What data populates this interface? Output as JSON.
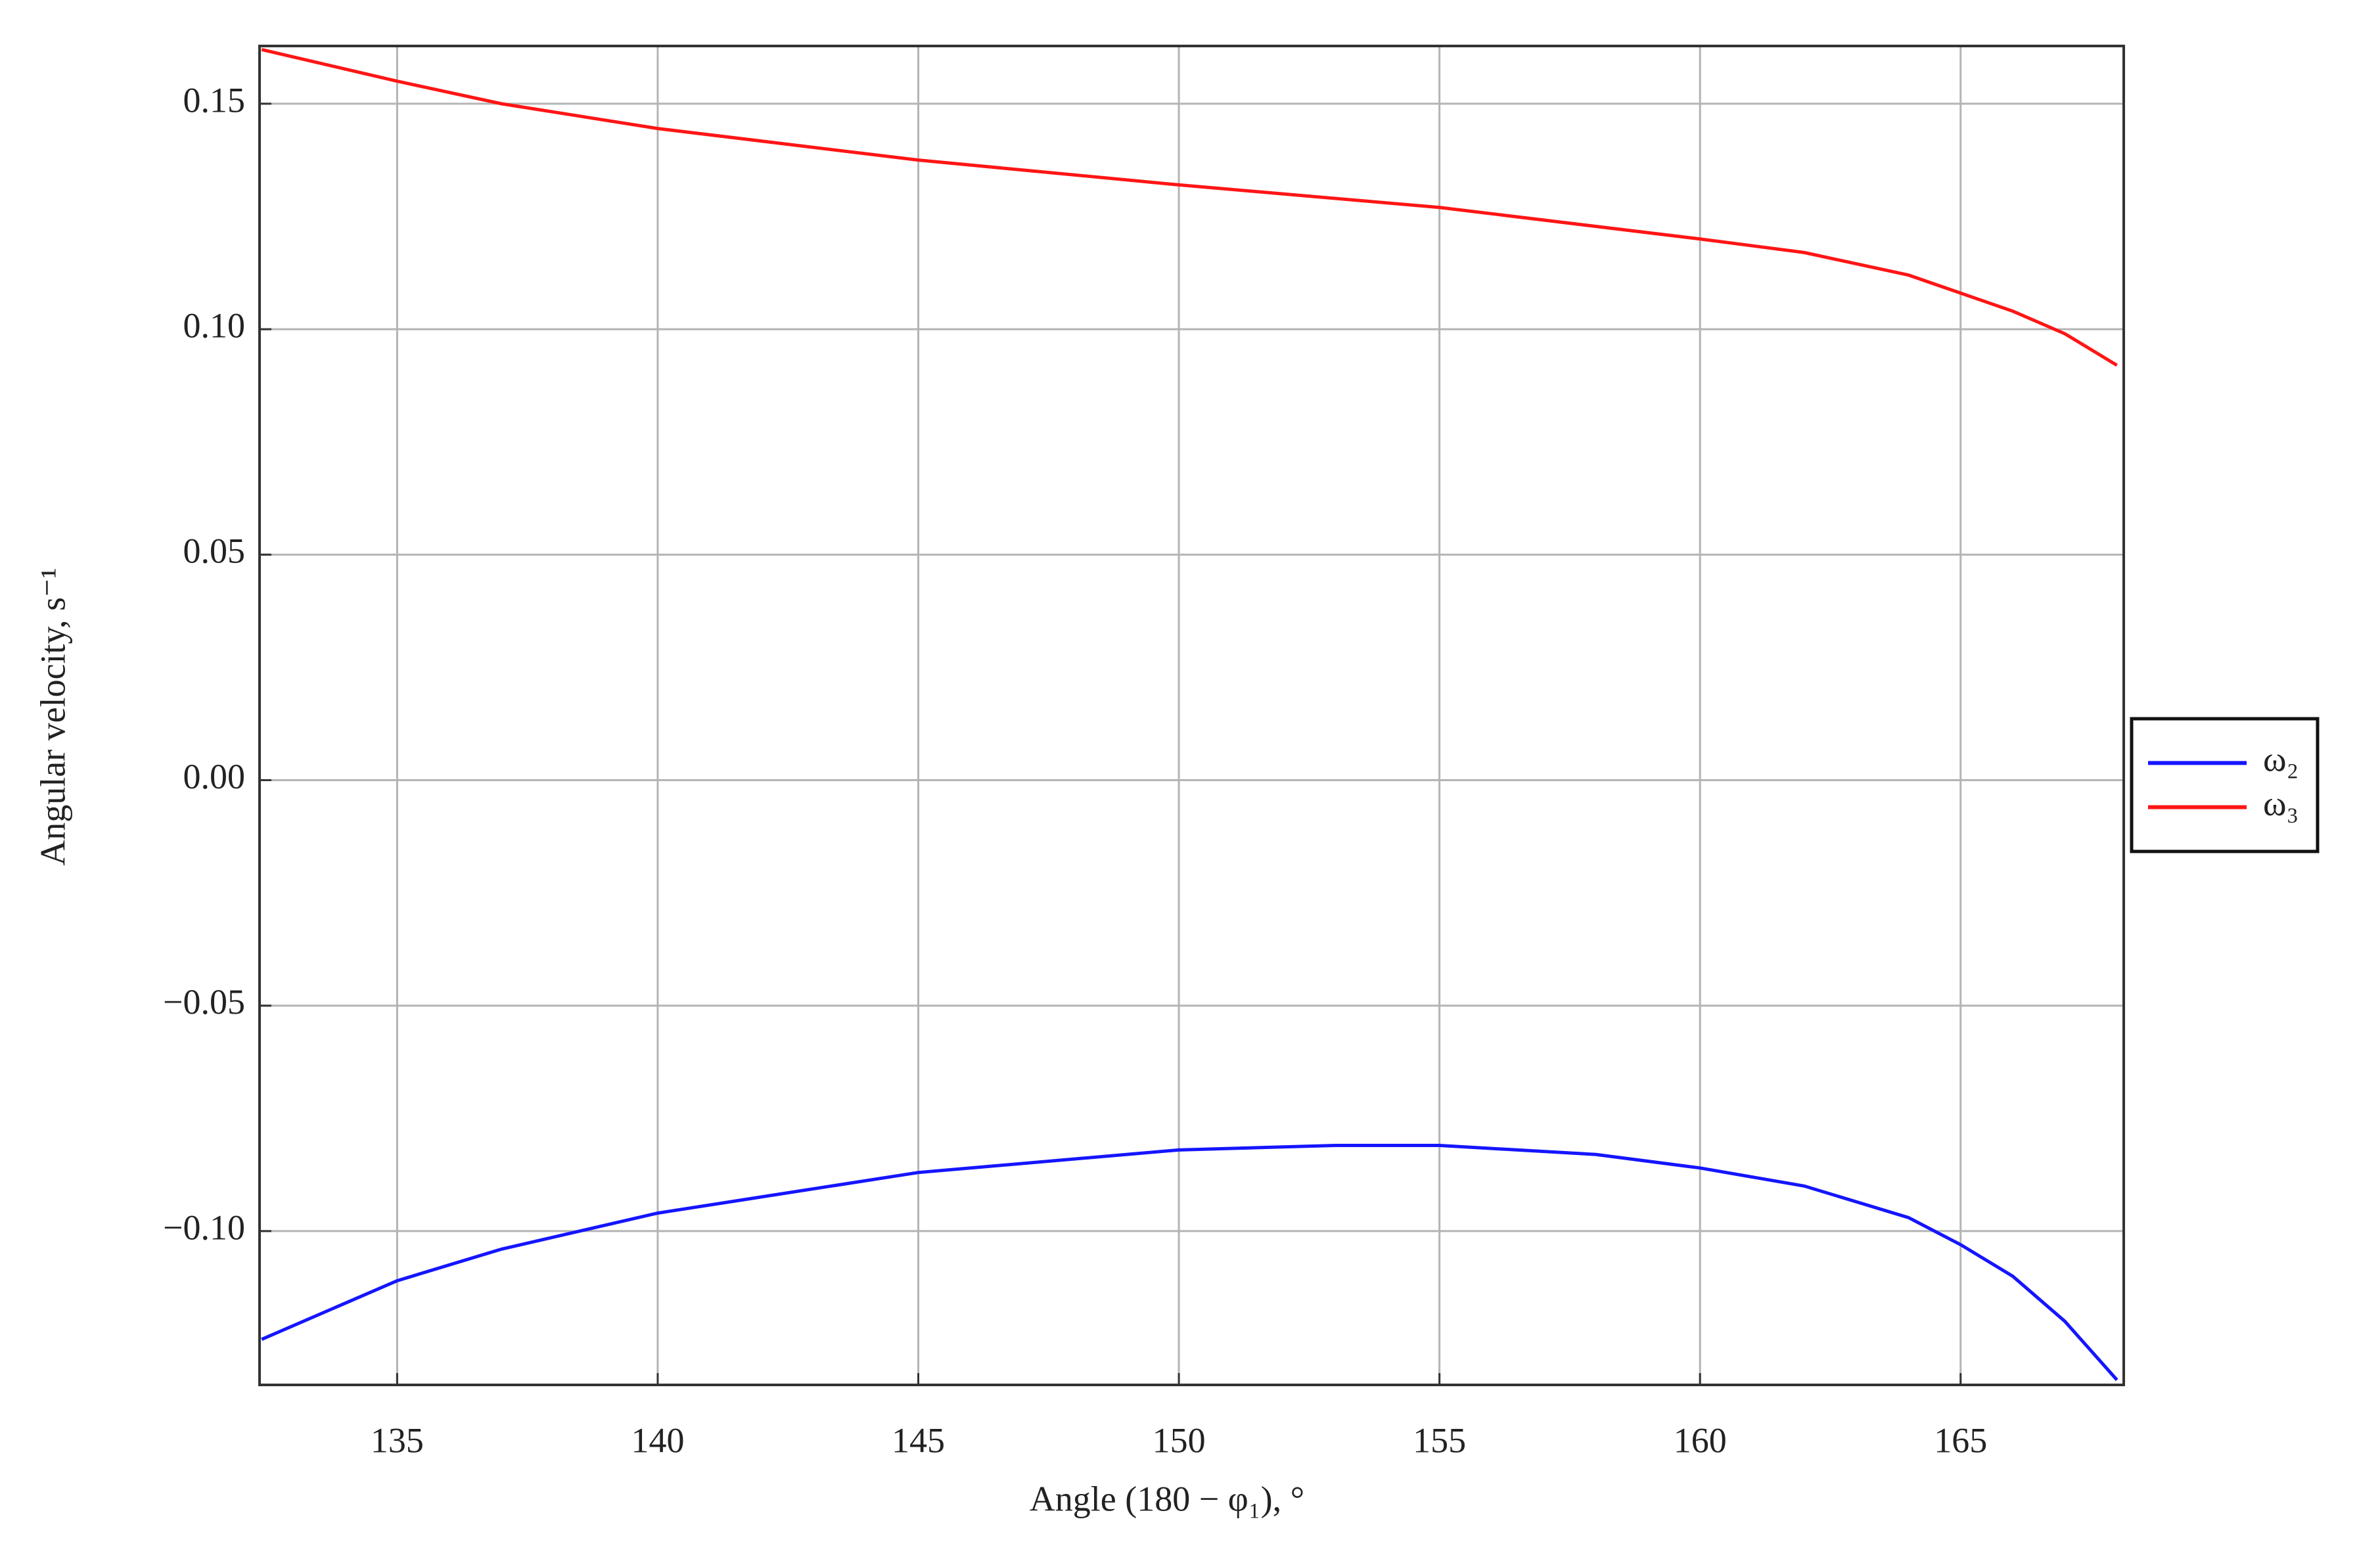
{
  "chart_data": {
    "type": "line",
    "x_label": "Angle (180 − φ₁), °",
    "y_label": "Angular velocity, s⁻¹",
    "xlim": [
      132.36,
      168.13
    ],
    "ylim": [
      -0.1341,
      0.1628
    ],
    "xticks": [
      135,
      140,
      145,
      150,
      155,
      160,
      165
    ],
    "yticks": [
      {
        "value": -0.1,
        "label": "−0.10"
      },
      {
        "value": -0.05,
        "label": "−0.05"
      },
      {
        "value": 0,
        "label": "0.00"
      },
      0.05,
      {
        "value": 0.1,
        "label": "0.10"
      },
      0.15
    ],
    "grid": true,
    "legend": "right",
    "series": [
      {
        "name": "ω₂",
        "color": "#1515ff",
        "x": [
          132.4,
          135,
          137,
          140,
          145,
          150,
          153,
          155,
          158,
          160,
          162,
          164,
          165,
          166,
          167,
          168
        ],
        "values": [
          -0.124,
          -0.111,
          -0.104,
          -0.096,
          -0.087,
          -0.082,
          -0.081,
          -0.081,
          -0.083,
          -0.086,
          -0.09,
          -0.097,
          -0.103,
          -0.11,
          -0.12,
          -0.133
        ]
      },
      {
        "name": "ω₃",
        "color": "#ff1515",
        "x": [
          132.4,
          135,
          137,
          140,
          145,
          150,
          155,
          160,
          162,
          164,
          165,
          166,
          167,
          168
        ],
        "values": [
          0.162,
          0.155,
          0.15,
          0.1445,
          0.1375,
          0.132,
          0.127,
          0.12,
          0.117,
          0.112,
          0.108,
          0.104,
          0.099,
          0.092
        ]
      }
    ]
  }
}
